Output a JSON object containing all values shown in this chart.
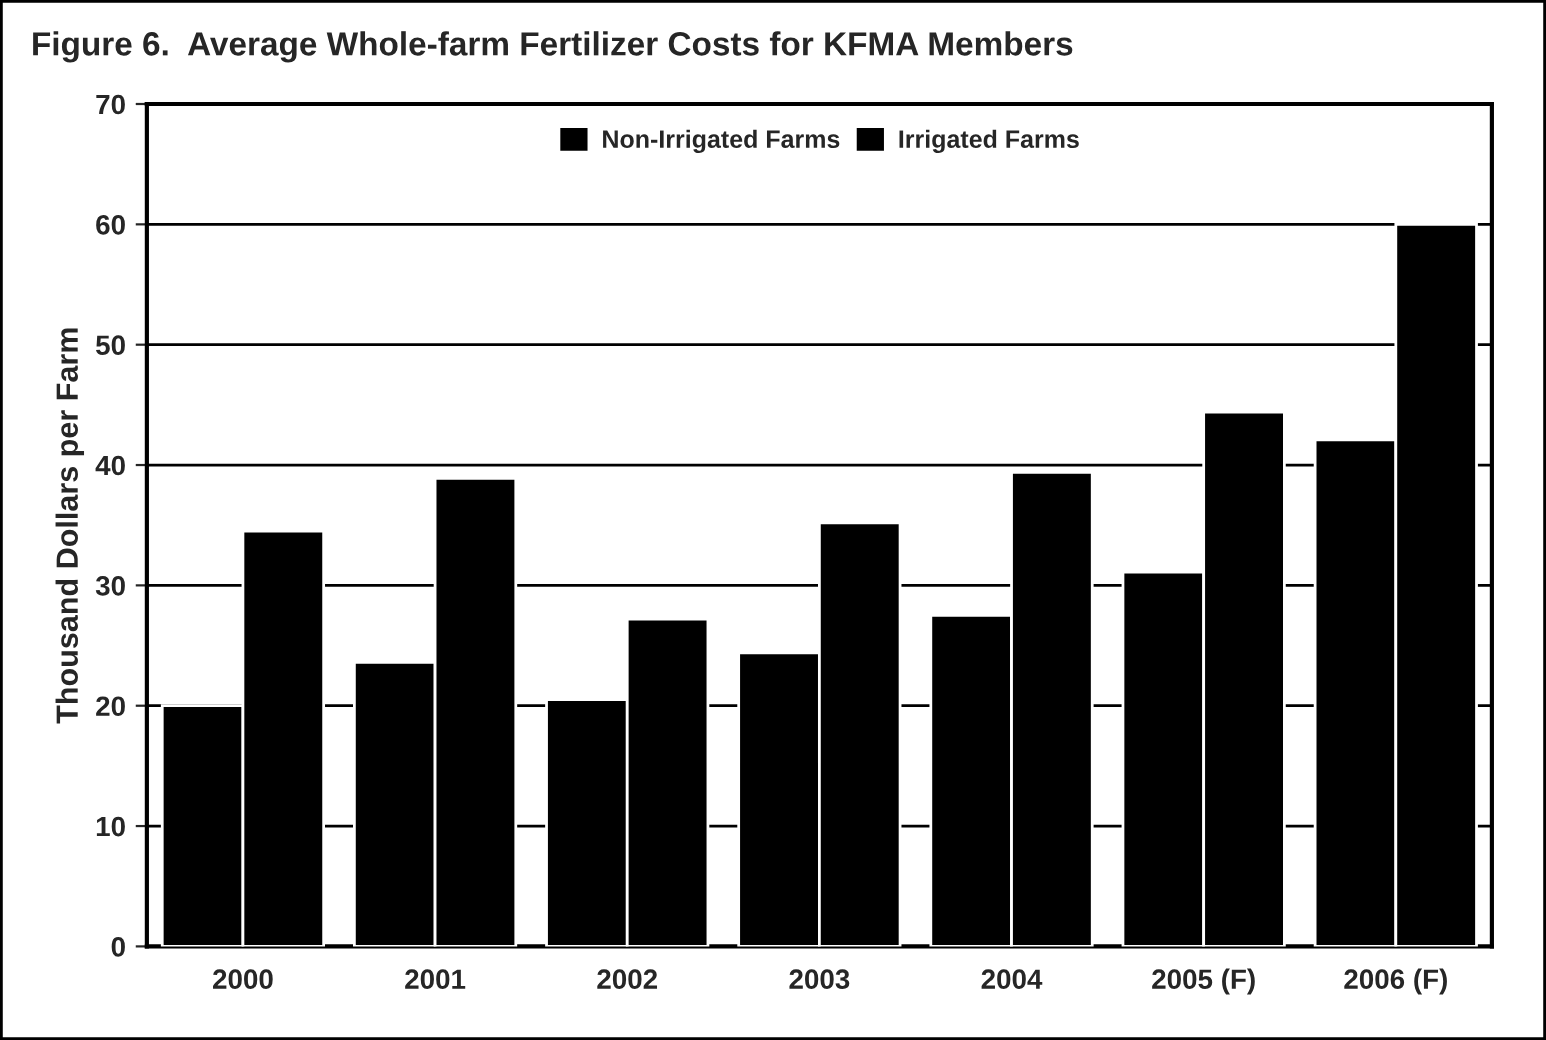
{
  "chart_data": {
    "type": "bar",
    "title": "Figure 6.  Average Whole-farm Fertilizer Costs for KFMA Members",
    "ylabel": "Thousand Dollars per Farm",
    "categories": [
      "2000",
      "2001",
      "2002",
      "2003",
      "2004",
      "2005 (F)",
      "2006 (F)"
    ],
    "series": [
      {
        "name": "Non-Irrigated Farms",
        "color": "#000000",
        "values": [
          20,
          23.6,
          20.5,
          24.4,
          27.5,
          31.1,
          42.1
        ]
      },
      {
        "name": "Irrigated Farms",
        "color": "#000000",
        "values": [
          34.5,
          38.9,
          27.2,
          35.2,
          39.4,
          44.4,
          60
        ]
      }
    ],
    "ylim": [
      0,
      70
    ],
    "yticks": [
      0,
      10,
      20,
      30,
      40,
      50,
      60,
      70
    ],
    "grid": "y",
    "legend": "top"
  }
}
